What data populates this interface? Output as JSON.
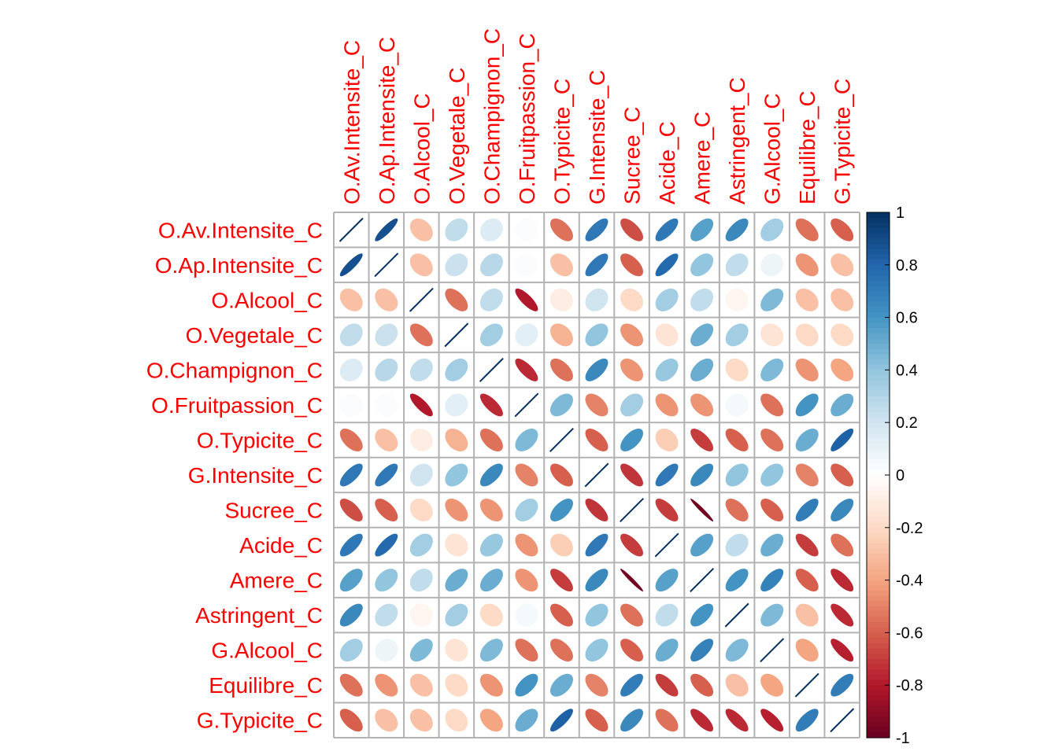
{
  "chart_data": {
    "type": "heatmap",
    "style": "ellipse correlation matrix",
    "label_color": "#FF0000",
    "variables": [
      "O.Av.Intensite_C",
      "O.Ap.Intensite_C",
      "O.Alcool_C",
      "O.Vegetale_C",
      "O.Champignon_C",
      "O.Fruitpassion_C",
      "O.Typicite_C",
      "G.Intensite_C",
      "Sucree_C",
      "Acide_C",
      "Amere_C",
      "Astringent_C",
      "G.Alcool_C",
      "Equilibre_C",
      "G.Typicite_C"
    ],
    "matrix": [
      [
        1,
        0.88,
        -0.3,
        0.25,
        0.15,
        0.02,
        -0.55,
        0.72,
        -0.65,
        0.72,
        0.55,
        0.65,
        0.35,
        -0.55,
        -0.6
      ],
      [
        0.88,
        1,
        -0.3,
        0.22,
        0.28,
        0.02,
        -0.3,
        0.72,
        -0.6,
        0.78,
        0.4,
        0.25,
        0.08,
        -0.45,
        -0.3
      ],
      [
        -0.3,
        -0.3,
        1,
        -0.55,
        0.25,
        -0.8,
        -0.1,
        0.2,
        -0.2,
        0.35,
        0.25,
        -0.05,
        0.45,
        -0.3,
        -0.3
      ],
      [
        0.25,
        0.22,
        -0.55,
        1,
        0.35,
        0.12,
        -0.35,
        0.4,
        -0.45,
        -0.15,
        0.5,
        0.35,
        -0.15,
        -0.2,
        -0.2
      ],
      [
        0.15,
        0.28,
        0.25,
        0.35,
        1,
        -0.75,
        -0.55,
        0.65,
        -0.45,
        0.38,
        0.5,
        -0.2,
        0.45,
        -0.45,
        -0.4
      ],
      [
        0.02,
        0.02,
        -0.8,
        0.12,
        -0.75,
        1,
        0.45,
        -0.5,
        0.35,
        -0.45,
        -0.45,
        0.05,
        -0.55,
        0.6,
        0.5
      ],
      [
        -0.55,
        -0.3,
        -0.1,
        -0.35,
        -0.55,
        0.45,
        1,
        -0.6,
        0.6,
        -0.25,
        -0.7,
        -0.6,
        -0.55,
        0.5,
        0.82
      ],
      [
        0.72,
        0.72,
        0.2,
        0.4,
        0.65,
        -0.5,
        -0.6,
        1,
        -0.72,
        0.72,
        0.65,
        0.4,
        0.4,
        -0.5,
        -0.6
      ],
      [
        -0.65,
        -0.6,
        -0.2,
        -0.45,
        -0.45,
        0.35,
        0.6,
        -0.72,
        1,
        -0.7,
        -0.97,
        -0.55,
        -0.6,
        0.7,
        0.65
      ],
      [
        0.72,
        0.78,
        0.35,
        -0.15,
        0.38,
        -0.45,
        -0.25,
        0.72,
        -0.7,
        1,
        0.55,
        0.25,
        0.5,
        -0.7,
        -0.55
      ],
      [
        0.55,
        0.4,
        0.25,
        0.5,
        0.5,
        -0.45,
        -0.7,
        0.65,
        -0.97,
        0.55,
        1,
        0.6,
        0.68,
        -0.6,
        -0.75
      ],
      [
        0.65,
        0.25,
        -0.05,
        0.35,
        -0.2,
        0.05,
        -0.6,
        0.4,
        -0.55,
        0.25,
        0.6,
        1,
        0.45,
        -0.3,
        -0.75
      ],
      [
        0.35,
        0.08,
        0.45,
        -0.15,
        0.45,
        -0.55,
        -0.55,
        0.4,
        -0.6,
        0.5,
        0.68,
        0.45,
        1,
        -0.4,
        -0.78
      ],
      [
        -0.55,
        -0.45,
        -0.3,
        -0.2,
        -0.45,
        0.6,
        0.5,
        -0.5,
        0.7,
        -0.7,
        -0.6,
        -0.3,
        -0.4,
        1,
        0.7
      ],
      [
        -0.6,
        -0.3,
        -0.3,
        -0.2,
        -0.4,
        0.5,
        0.82,
        -0.6,
        0.65,
        -0.55,
        -0.75,
        -0.75,
        -0.78,
        0.7,
        1
      ]
    ],
    "colorbar": {
      "range": [
        -1,
        1
      ],
      "ticks": [
        "1",
        "0.8",
        "0.6",
        "0.4",
        "0.2",
        "0",
        "-0.2",
        "-0.4",
        "-0.6",
        "-0.8",
        "-1"
      ]
    },
    "color_scale": [
      "#67001F",
      "#B2182B",
      "#D6604D",
      "#F4A582",
      "#FDDBC7",
      "#FFFFFF",
      "#D1E5F0",
      "#92C5DE",
      "#4393C3",
      "#2166AC",
      "#053061"
    ]
  }
}
